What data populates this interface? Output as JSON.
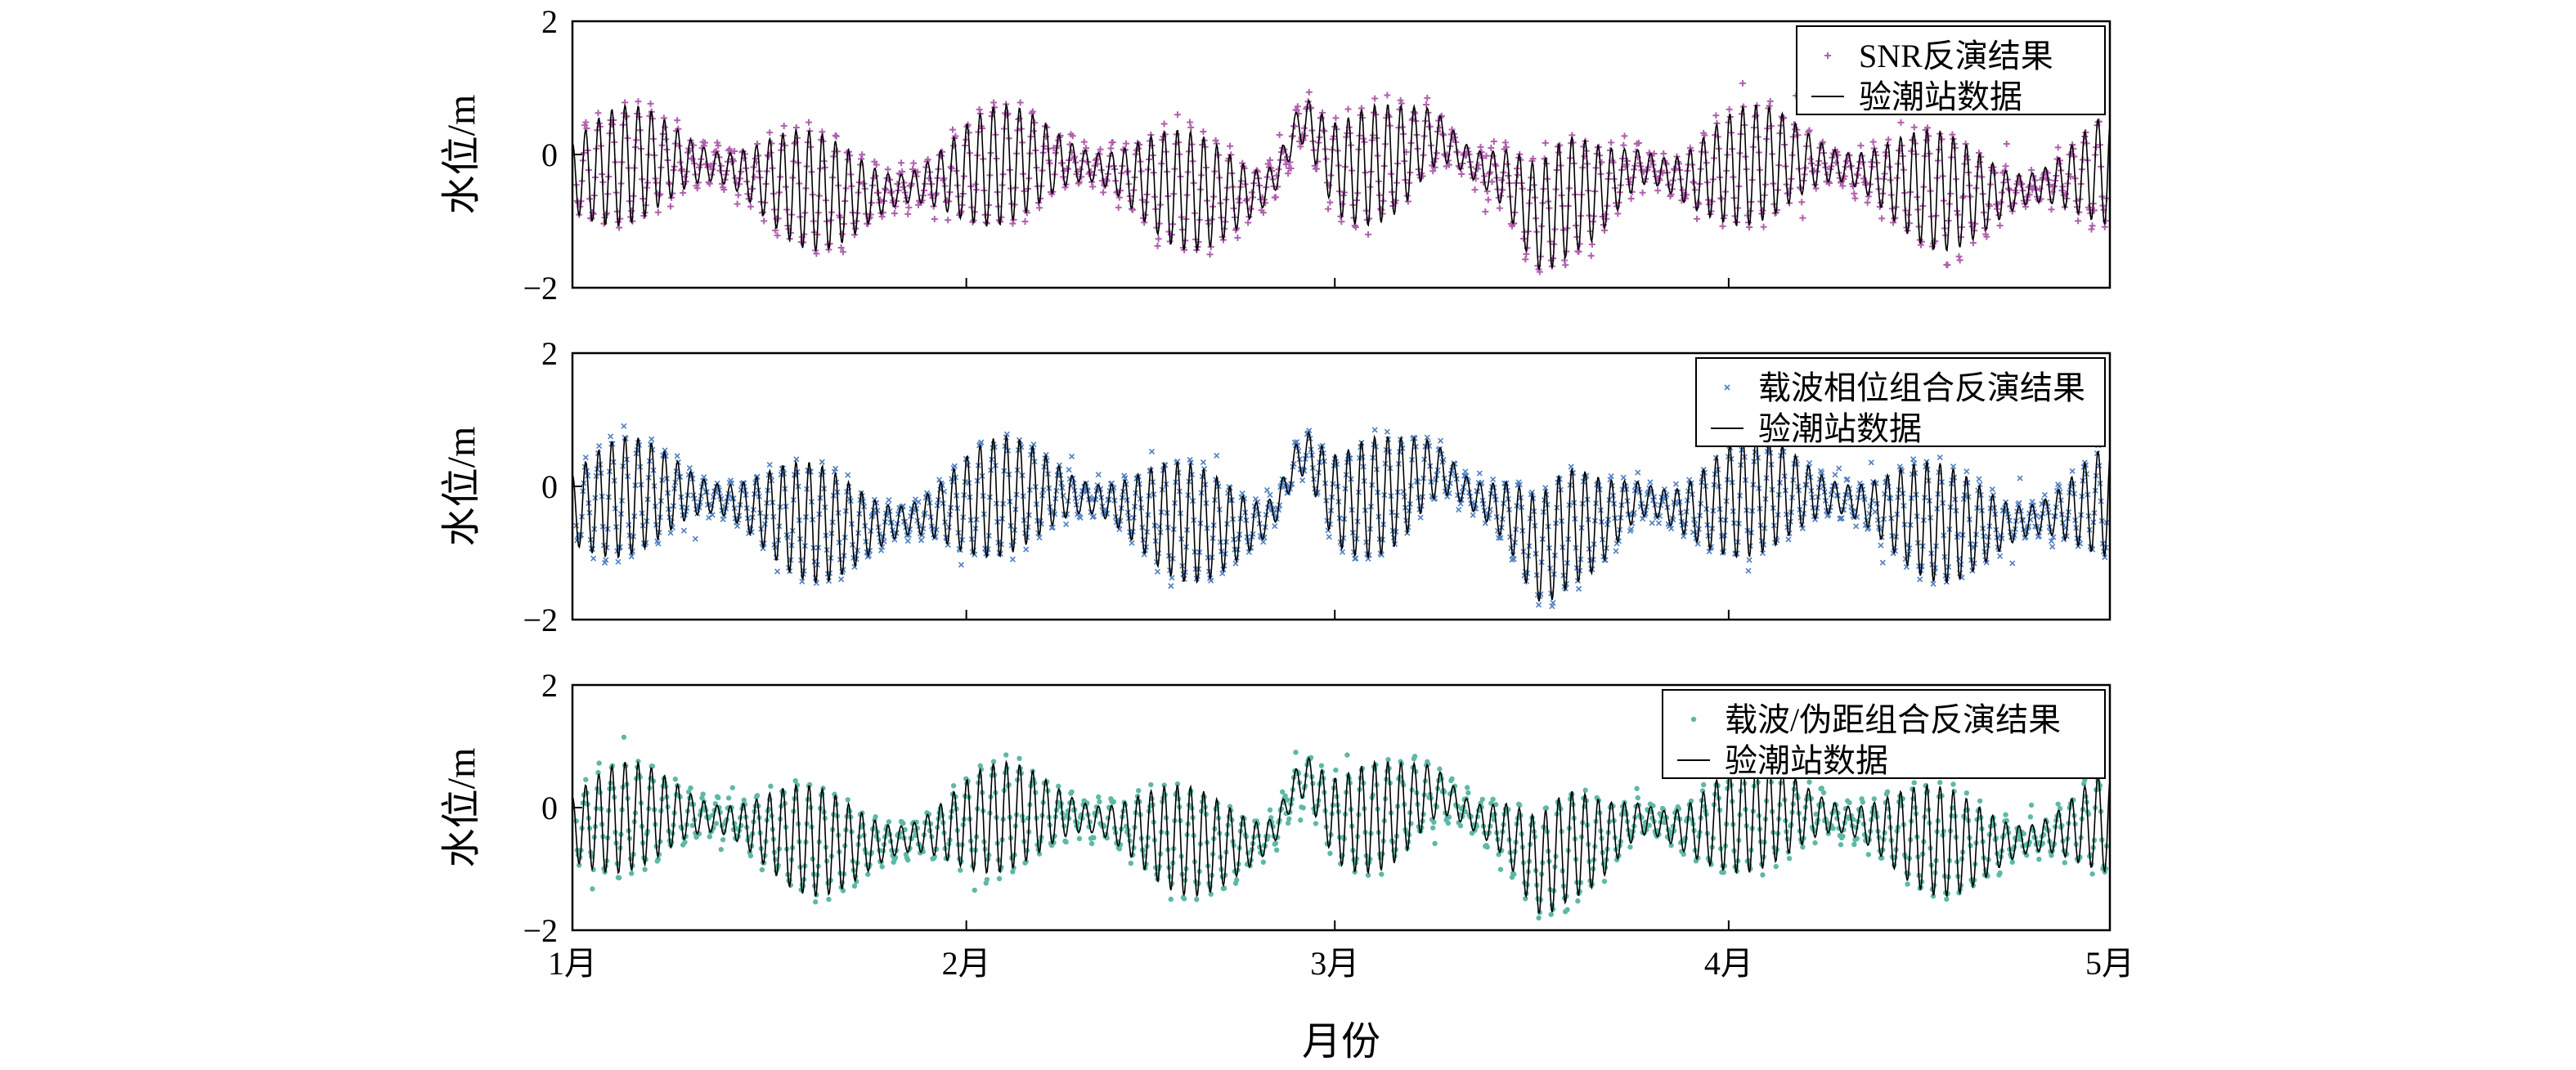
{
  "chart_data": [
    {
      "type": "scatter",
      "panel": "top",
      "ylabel": "水位/m",
      "ylim": [
        -2,
        2
      ],
      "yticks": [
        2,
        0,
        -2
      ],
      "ytick_labels": [
        "2",
        "0",
        "−2"
      ],
      "xlim": [
        0,
        120
      ],
      "legend_position": "top-right",
      "series": [
        {
          "name": "SNR反演结果",
          "kind": "scatter",
          "marker": "+",
          "color": "#b05fae"
        },
        {
          "name": "验潮站数据",
          "kind": "line",
          "color": "#000000"
        }
      ]
    },
    {
      "type": "scatter",
      "panel": "middle",
      "ylabel": "水位/m",
      "ylim": [
        -2,
        2
      ],
      "yticks": [
        2,
        0,
        -2
      ],
      "ytick_labels": [
        "2",
        "0",
        "−2"
      ],
      "xlim": [
        0,
        120
      ],
      "legend_position": "top-right",
      "series": [
        {
          "name": "载波相位组合反演结果",
          "kind": "scatter",
          "marker": "x",
          "color": "#4f7fc0"
        },
        {
          "name": "验潮站数据",
          "kind": "line",
          "color": "#000000"
        }
      ]
    },
    {
      "type": "scatter",
      "panel": "bottom",
      "ylabel": "水位/m",
      "ylim": [
        -2,
        2
      ],
      "yticks": [
        2,
        0,
        -2
      ],
      "ytick_labels": [
        "2",
        "0",
        "−2"
      ],
      "xlim": [
        0,
        120
      ],
      "legend_position": "top-right",
      "series": [
        {
          "name": "载波/伪距组合反演结果",
          "kind": "scatter",
          "marker": ".",
          "color": "#5fb8a6"
        },
        {
          "name": "验潮站数据",
          "kind": "line",
          "color": "#000000"
        }
      ]
    }
  ],
  "x_axis": {
    "xlabel": "月份",
    "ticks": [
      {
        "value": 0,
        "label": "1月"
      },
      {
        "value": 31,
        "label": "2月"
      },
      {
        "value": 60,
        "label": "3月"
      },
      {
        "value": 91,
        "label": "4月"
      },
      {
        "value": 121,
        "label": "5月"
      }
    ]
  }
}
